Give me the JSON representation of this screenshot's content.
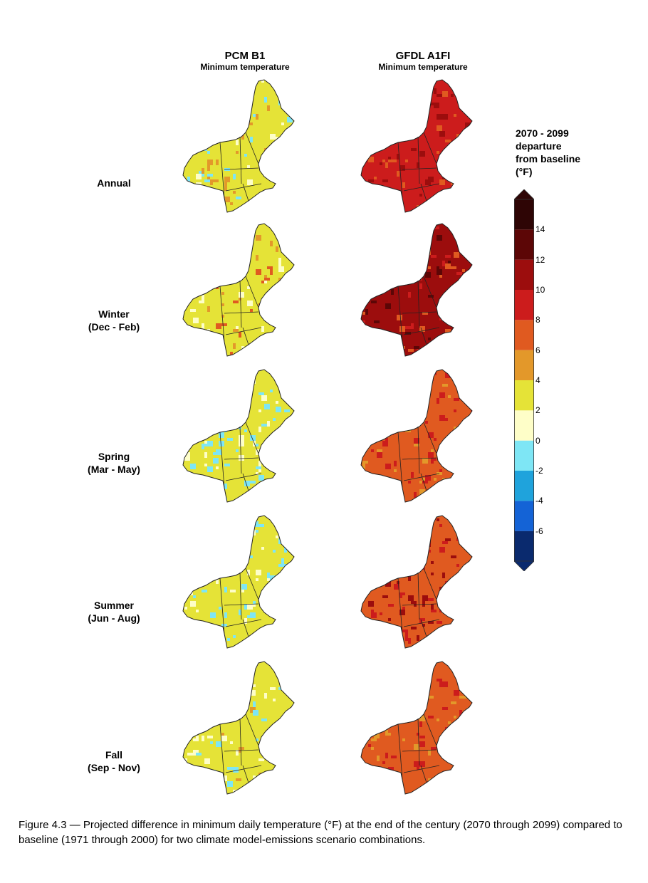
{
  "columns": [
    {
      "title": "PCM B1",
      "subtitle": "Minimum temperature"
    },
    {
      "title": "GFDL A1FI",
      "subtitle": "Minimum temperature"
    }
  ],
  "rows": [
    {
      "label_line1": "Annual",
      "label_line2": ""
    },
    {
      "label_line1": "Winter",
      "label_line2": "(Dec - Feb)"
    },
    {
      "label_line1": "Spring",
      "label_line2": "(Mar - May)"
    },
    {
      "label_line1": "Summer",
      "label_line2": "(Jun - Aug)"
    },
    {
      "label_line1": "Fall",
      "label_line2": "(Sep - Nov)"
    }
  ],
  "legend": {
    "title_lines": [
      "2070 - 2099",
      "departure",
      "from baseline",
      "(°F)"
    ],
    "ticks": [
      "14",
      "12",
      "10",
      "8",
      "6",
      "4",
      "2",
      "0",
      "-2",
      "-4",
      "-6"
    ],
    "bins": [
      {
        "range": "-8 to -6",
        "color": "#0a2a6e"
      },
      {
        "range": "-6 to -4",
        "color": "#1463d6"
      },
      {
        "range": "-4 to -2",
        "color": "#1fa3dc"
      },
      {
        "range": "-2 to 0",
        "color": "#7ee6f5"
      },
      {
        "range": "0 to 2",
        "color": "#fefec8"
      },
      {
        "range": "2 to 4",
        "color": "#e5e337"
      },
      {
        "range": "4 to 6",
        "color": "#e3982a"
      },
      {
        "range": "6 to 8",
        "color": "#e05a20"
      },
      {
        "range": "8 to 10",
        "color": "#cc1c1c"
      },
      {
        "range": "10 to 12",
        "color": "#9c0d0d"
      },
      {
        "range": "12 to 14",
        "color": "#5c0606"
      },
      {
        "range": "14 to 16",
        "color": "#2e0505"
      }
    ]
  },
  "maps": [
    {
      "model": "PCM B1",
      "season": "Annual",
      "dominant_color": "#e5e337",
      "patch_colors": [
        "#fefec8",
        "#e3982a",
        "#7ee6f5"
      ]
    },
    {
      "model": "GFDL A1FI",
      "season": "Annual",
      "dominant_color": "#cc1c1c",
      "patch_colors": [
        "#e05a20",
        "#9c0d0d"
      ]
    },
    {
      "model": "PCM B1",
      "season": "Winter",
      "dominant_color": "#e5e337",
      "patch_colors": [
        "#e3982a",
        "#fefec8",
        "#e05a20"
      ]
    },
    {
      "model": "GFDL A1FI",
      "season": "Winter",
      "dominant_color": "#9c0d0d",
      "patch_colors": [
        "#cc1c1c",
        "#5c0606",
        "#e05a20"
      ]
    },
    {
      "model": "PCM B1",
      "season": "Spring",
      "dominant_color": "#e5e337",
      "patch_colors": [
        "#fefec8",
        "#7ee6f5"
      ]
    },
    {
      "model": "GFDL A1FI",
      "season": "Spring",
      "dominant_color": "#e05a20",
      "patch_colors": [
        "#cc1c1c",
        "#e3982a"
      ]
    },
    {
      "model": "PCM B1",
      "season": "Summer",
      "dominant_color": "#e5e337",
      "patch_colors": [
        "#fefec8",
        "#7ee6f5"
      ]
    },
    {
      "model": "GFDL A1FI",
      "season": "Summer",
      "dominant_color": "#e05a20",
      "patch_colors": [
        "#cc1c1c",
        "#9c0d0d"
      ]
    },
    {
      "model": "PCM B1",
      "season": "Fall",
      "dominant_color": "#e5e337",
      "patch_colors": [
        "#fefec8",
        "#e3982a",
        "#7ee6f5"
      ]
    },
    {
      "model": "GFDL A1FI",
      "season": "Fall",
      "dominant_color": "#e05a20",
      "patch_colors": [
        "#cc1c1c",
        "#e3982a"
      ]
    }
  ],
  "caption": "Figure 4.3 — Projected difference in minimum daily temperature (°F) at the end of the century (2070 through 2099) compared to baseline (1971 through 2000) for two climate model-emissions scenario combinations."
}
